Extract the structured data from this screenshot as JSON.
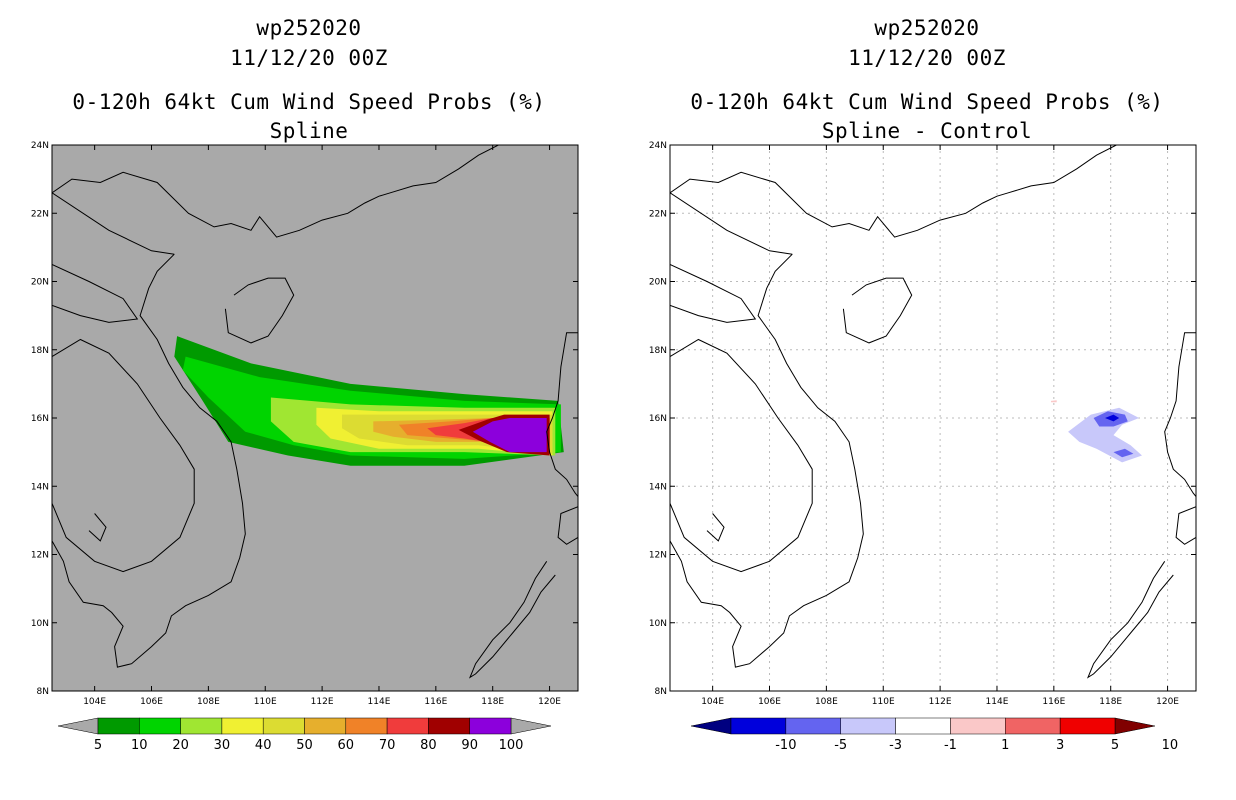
{
  "left_panel": {
    "title_lines": [
      "wp252020",
      "11/12/20 00Z",
      "0-120h 64kt Cum Wind Speed Probs (%)",
      "Spline"
    ]
  },
  "right_panel": {
    "title_lines": [
      "wp252020",
      "11/12/20 00Z",
      "0-120h 64kt Cum Wind Speed Probs (%)",
      "Spline - Control"
    ]
  },
  "chart_data": [
    {
      "type": "heatmap",
      "title": "0-120h 64kt Cum Wind Speed Probs (%)",
      "subtitle": "Spline",
      "xlim": [
        102.5,
        121
      ],
      "ylim": [
        8,
        24
      ],
      "x_ticks": [
        104,
        106,
        108,
        110,
        112,
        114,
        116,
        118,
        120
      ],
      "x_tick_labels": [
        "104E",
        "106E",
        "108E",
        "110E",
        "112E",
        "114E",
        "116E",
        "118E",
        "120E"
      ],
      "y_ticks": [
        8,
        10,
        12,
        14,
        16,
        18,
        20,
        22,
        24
      ],
      "y_tick_labels": [
        "8N",
        "10N",
        "12N",
        "14N",
        "16N",
        "18N",
        "20N",
        "22N",
        "24N"
      ],
      "grid": false,
      "background": "#a9a9a9",
      "colorbar": {
        "labels": [
          "5",
          "10",
          "20",
          "30",
          "40",
          "50",
          "60",
          "70",
          "80",
          "90",
          "100"
        ],
        "colors": [
          "#009a00",
          "#00d400",
          "#a0e632",
          "#f0f032",
          "#dcdc32",
          "#e6af2d",
          "#f08228",
          "#f03c3c",
          "#a00000",
          "#8c00dc"
        ],
        "extend_color": "#a9a9a9"
      },
      "contours": [
        {
          "level": 5,
          "color": "#009a00",
          "points": [
            [
              106.9,
              18.4
            ],
            [
              109.5,
              17.6
            ],
            [
              113,
              17.0
            ],
            [
              117,
              16.7
            ],
            [
              120.3,
              16.5
            ],
            [
              120.5,
              15.0
            ],
            [
              117,
              14.6
            ],
            [
              113,
              14.6
            ],
            [
              110.8,
              14.9
            ],
            [
              108.7,
              15.3
            ],
            [
              107.8,
              16.5
            ],
            [
              106.8,
              17.8
            ]
          ]
        },
        {
          "level": 10,
          "color": "#00d400",
          "points": [
            [
              107.2,
              17.8
            ],
            [
              109.8,
              17.2
            ],
            [
              113,
              16.8
            ],
            [
              117,
              16.5
            ],
            [
              120.4,
              16.4
            ],
            [
              120.4,
              15.0
            ],
            [
              117,
              14.8
            ],
            [
              113,
              14.9
            ],
            [
              111,
              15.2
            ],
            [
              109.3,
              15.6
            ],
            [
              108,
              16.6
            ],
            [
              107.1,
              17.4
            ]
          ]
        },
        {
          "level": 20,
          "color": "#a0e632",
          "points": [
            [
              110.2,
              16.6
            ],
            [
              113,
              16.4
            ],
            [
              117,
              16.3
            ],
            [
              120.2,
              16.3
            ],
            [
              120.2,
              14.9
            ],
            [
              117,
              15.0
            ],
            [
              113,
              15.0
            ],
            [
              111,
              15.3
            ],
            [
              110.2,
              15.9
            ]
          ]
        },
        {
          "level": 30,
          "color": "#f0f032",
          "points": [
            [
              111.8,
              16.3
            ],
            [
              114,
              16.2
            ],
            [
              117.5,
              16.2
            ],
            [
              120.1,
              16.2
            ],
            [
              120.1,
              14.9
            ],
            [
              117.5,
              15.1
            ],
            [
              114,
              15.1
            ],
            [
              112.3,
              15.4
            ],
            [
              111.8,
              15.8
            ]
          ]
        },
        {
          "level": 40,
          "color": "#dcdc32",
          "points": [
            [
              112.7,
              16.1
            ],
            [
              115,
              16.1
            ],
            [
              117.5,
              16.1
            ],
            [
              120.1,
              16.1
            ],
            [
              120.1,
              14.95
            ],
            [
              117.5,
              15.2
            ],
            [
              115,
              15.2
            ],
            [
              113.3,
              15.4
            ],
            [
              112.7,
              15.7
            ]
          ]
        },
        {
          "level": 50,
          "color": "#e6af2d",
          "points": [
            [
              113.8,
              15.9
            ],
            [
              116,
              15.95
            ],
            [
              118,
              16.0
            ],
            [
              120,
              16.0
            ],
            [
              120,
              15.0
            ],
            [
              118,
              15.3
            ],
            [
              116,
              15.3
            ],
            [
              114.5,
              15.45
            ],
            [
              113.8,
              15.6
            ]
          ]
        },
        {
          "level": 60,
          "color": "#f08228",
          "points": [
            [
              114.7,
              15.8
            ],
            [
              116.5,
              15.9
            ],
            [
              118,
              16.0
            ],
            [
              120,
              16.0
            ],
            [
              120,
              15.0
            ],
            [
              118,
              15.3
            ],
            [
              116.5,
              15.4
            ],
            [
              115,
              15.5
            ]
          ]
        },
        {
          "level": 70,
          "color": "#f03c3c",
          "points": [
            [
              115.7,
              15.7
            ],
            [
              117,
              15.85
            ],
            [
              118,
              16.0
            ],
            [
              120,
              16.0
            ],
            [
              120,
              15.0
            ],
            [
              118.5,
              15.2
            ],
            [
              117,
              15.4
            ],
            [
              116,
              15.5
            ]
          ]
        },
        {
          "level": 80,
          "color": "#a00000",
          "points": [
            [
              116.8,
              15.65
            ],
            [
              117.8,
              15.95
            ],
            [
              118.4,
              16.1
            ],
            [
              120,
              16.1
            ],
            [
              120,
              14.9
            ],
            [
              118.5,
              15.0
            ],
            [
              117.5,
              15.35
            ]
          ]
        },
        {
          "level": 90,
          "color": "#8c00dc",
          "points": [
            [
              117.3,
              15.6
            ],
            [
              118,
              15.9
            ],
            [
              118.6,
              16.0
            ],
            [
              119.9,
              16.0
            ],
            [
              119.9,
              15.0
            ],
            [
              118.6,
              15.0
            ],
            [
              117.9,
              15.3
            ]
          ]
        }
      ]
    },
    {
      "type": "heatmap",
      "title": "0-120h 64kt Cum Wind Speed Probs (%)",
      "subtitle": "Spline - Control",
      "xlim": [
        102.5,
        121
      ],
      "ylim": [
        8,
        24
      ],
      "x_ticks": [
        104,
        106,
        108,
        110,
        112,
        114,
        116,
        118,
        120
      ],
      "x_tick_labels": [
        "104E",
        "106E",
        "108E",
        "110E",
        "112E",
        "114E",
        "116E",
        "118E",
        "120E"
      ],
      "y_ticks": [
        8,
        10,
        12,
        14,
        16,
        18,
        20,
        22,
        24
      ],
      "y_tick_labels": [
        "8N",
        "10N",
        "12N",
        "14N",
        "16N",
        "18N",
        "20N",
        "22N",
        "24N"
      ],
      "grid": true,
      "background": "#ffffff",
      "colorbar": {
        "labels": [
          "-10",
          "-5",
          "-3",
          "-1",
          "1",
          "3",
          "5",
          "10"
        ],
        "colors": [
          "#0000dc",
          "#6464f0",
          "#c8c8fa",
          "#ffffff",
          "#fac8c8",
          "#f06464",
          "#f00000"
        ],
        "extend_low": "#000080",
        "extend_high": "#800000"
      },
      "contours": [
        {
          "level": -1,
          "color": "#c8c8fa",
          "points": [
            [
              116.5,
              15.6
            ],
            [
              117.3,
              16.1
            ],
            [
              118.3,
              16.3
            ],
            [
              119,
              16.0
            ],
            [
              118.4,
              15.8
            ],
            [
              118.1,
              15.5
            ],
            [
              118.7,
              15.2
            ],
            [
              119.1,
              14.9
            ],
            [
              118.4,
              14.7
            ],
            [
              117.5,
              15.1
            ],
            [
              116.9,
              15.3
            ]
          ]
        },
        {
          "level": -3,
          "color": "#6464f0",
          "points": [
            [
              117.4,
              16.0
            ],
            [
              117.9,
              16.2
            ],
            [
              118.5,
              16.1
            ],
            [
              118.6,
              15.9
            ],
            [
              118.1,
              15.75
            ],
            [
              117.6,
              15.75
            ]
          ]
        },
        {
          "level": -5,
          "color": "#0000dc",
          "points": [
            [
              117.8,
              16.0
            ],
            [
              118.1,
              16.1
            ],
            [
              118.3,
              16.0
            ],
            [
              118.1,
              15.9
            ]
          ]
        },
        {
          "level": -3,
          "color": "#6464f0",
          "points": [
            [
              118.1,
              15.0
            ],
            [
              118.5,
              15.1
            ],
            [
              118.8,
              14.95
            ],
            [
              118.4,
              14.85
            ]
          ]
        },
        {
          "level": 1,
          "color": "#fac8c8",
          "points": [
            [
              115.9,
              16.5
            ],
            [
              116.1,
              16.52
            ],
            [
              116.1,
              16.46
            ],
            [
              115.9,
              16.46
            ]
          ]
        }
      ]
    }
  ]
}
